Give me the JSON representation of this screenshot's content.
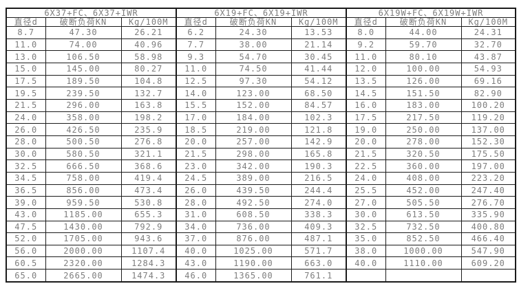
{
  "page": {
    "background_color": "#ffffff",
    "table_border_color": "#1a1a1a",
    "table_text_color": "#7d7d7d"
  },
  "chart_data": {
    "type": "table",
    "title": "",
    "groups": [
      {
        "title": "6X37+FC、6X37+IWR",
        "columns": [
          "直径d",
          "破断负荷KN",
          "Kg/100M"
        ],
        "rows": [
          [
            "8.7",
            "47.30",
            "26.21"
          ],
          [
            "11.0",
            "74.00",
            "40.96"
          ],
          [
            "13.0",
            "106.50",
            "58.98"
          ],
          [
            "15.0",
            "145.00",
            "80.27"
          ],
          [
            "17.5",
            "189.50",
            "104.8"
          ],
          [
            "19.5",
            "239.50",
            "132.7"
          ],
          [
            "21.5",
            "296.00",
            "163.8"
          ],
          [
            "24.0",
            "358.00",
            "198.2"
          ],
          [
            "26.0",
            "426.50",
            "235.9"
          ],
          [
            "28.0",
            "500.50",
            "276.8"
          ],
          [
            "30.0",
            "580.50",
            "321.1"
          ],
          [
            "32.5",
            "666.50",
            "368.6"
          ],
          [
            "34.5",
            "758.00",
            "419.4"
          ],
          [
            "36.5",
            "856.00",
            "473.4"
          ],
          [
            "39.0",
            "959.50",
            "530.8"
          ],
          [
            "43.0",
            "1185.00",
            "655.3"
          ],
          [
            "47.5",
            "1430.00",
            "792.9"
          ],
          [
            "52.0",
            "1705.00",
            "943.6"
          ],
          [
            "56.0",
            "2000.00",
            "1107.4"
          ],
          [
            "60.5",
            "2320.00",
            "1284.3"
          ],
          [
            "65.0",
            "2665.00",
            "1474.3"
          ]
        ]
      },
      {
        "title": "6X19+FC、6X19+IWR",
        "columns": [
          "直径d",
          "破断负荷KN",
          "Kg/100M"
        ],
        "rows": [
          [
            "6.2",
            "24.30",
            "13.53"
          ],
          [
            "7.7",
            "38.00",
            "21.14"
          ],
          [
            "9.3",
            "54.70",
            "30.45"
          ],
          [
            "11.0",
            "74.50",
            "41.44"
          ],
          [
            "12.5",
            "97.30",
            "54.12"
          ],
          [
            "14.0",
            "123.00",
            "68.50"
          ],
          [
            "15.5",
            "152.00",
            "84.57"
          ],
          [
            "17.0",
            "184.00",
            "102.3"
          ],
          [
            "18.5",
            "219.00",
            "121.8"
          ],
          [
            "20.0",
            "257.00",
            "142.9"
          ],
          [
            "21.5",
            "298.00",
            "165.8"
          ],
          [
            "23.0",
            "342.00",
            "190.3"
          ],
          [
            "24.5",
            "389.00",
            "216.5"
          ],
          [
            "26.0",
            "439.50",
            "244.4"
          ],
          [
            "28.0",
            "492.50",
            "274.0"
          ],
          [
            "31.0",
            "608.50",
            "338.3"
          ],
          [
            "34.0",
            "736.00",
            "409.3"
          ],
          [
            "37.0",
            "876.00",
            "487.1"
          ],
          [
            "40.0",
            "1025.00",
            "571.7"
          ],
          [
            "43.0",
            "1190.00",
            "663.0"
          ],
          [
            "46.0",
            "1365.00",
            "761.1"
          ]
        ]
      },
      {
        "title": "6X19W+FC、6X19W+IWR",
        "columns": [
          "直径d",
          "破断负荷KN",
          "Kg/100M"
        ],
        "rows": [
          [
            "8.0",
            "44.00",
            "24.31"
          ],
          [
            "9.2",
            "59.70",
            "32.70"
          ],
          [
            "11.0",
            "80.10",
            "43.87"
          ],
          [
            "12.0",
            "100.00",
            "54.93"
          ],
          [
            "13.5",
            "126.00",
            "69.16"
          ],
          [
            "14.5",
            "151.50",
            "82.90"
          ],
          [
            "16.0",
            "183.00",
            "100.20"
          ],
          [
            "17.5",
            "217.50",
            "119.20"
          ],
          [
            "19.0",
            "250.00",
            "137.00"
          ],
          [
            "20.0",
            "278.00",
            "152.30"
          ],
          [
            "21.5",
            "320.50",
            "175.50"
          ],
          [
            "22.5",
            "360.00",
            "197.00"
          ],
          [
            "24.0",
            "408.00",
            "223.20"
          ],
          [
            "25.5",
            "452.00",
            "247.40"
          ],
          [
            "27.0",
            "505.50",
            "276.70"
          ],
          [
            "30.0",
            "613.50",
            "335.90"
          ],
          [
            "32.5",
            "732.50",
            "400.80"
          ],
          [
            "35.0",
            "852.50",
            "466.40"
          ],
          [
            "38.0",
            "1000.00",
            "547.90"
          ],
          [
            "40.0",
            "1110.00",
            "609.20"
          ],
          [
            "",
            "",
            ""
          ]
        ]
      }
    ]
  }
}
